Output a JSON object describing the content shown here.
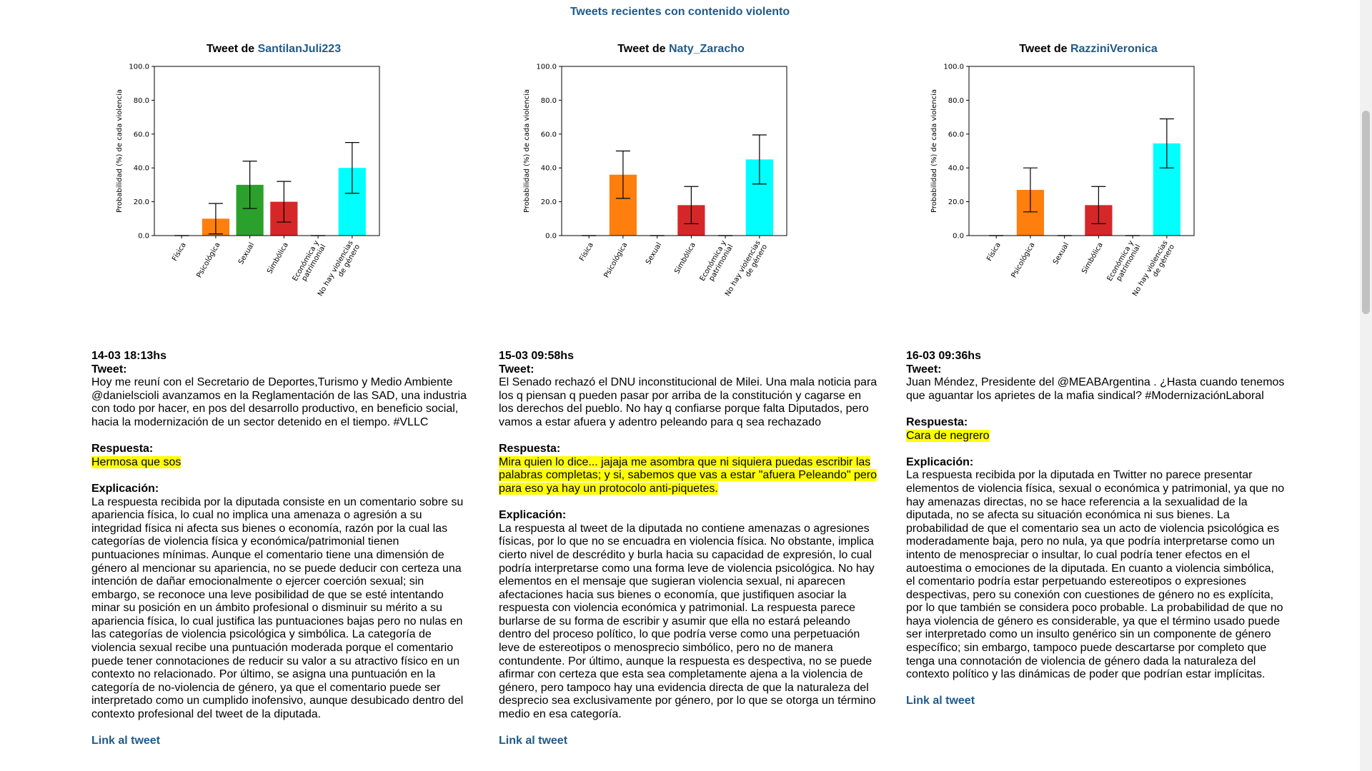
{
  "page": {
    "title": "Tweets recientes con contenido violento"
  },
  "tweets": [
    {
      "title_prefix": "Tweet de ",
      "user": "SantilanJuli223",
      "date": "14-03 18:13hs",
      "tweet_label": "Tweet:",
      "tweet_text": "Hoy me reuní con el Secretario de Deportes,Turismo y Medio Ambiente @danielscioli avanzamos en la Reglamentación de las SAD, una industria con todo por hacer, en pos del desarrollo productivo, en beneficio social, hacia la modernización de un sector detenido en el tiempo. #VLLC",
      "response_label": "Respuesta:",
      "response_text": "Hermosa que sos",
      "explanation_label": "Explicación:",
      "explanation_text": "La respuesta recibida por la diputada consiste en un comentario sobre su apariencia física, lo cual no implica una amenaza o agresión a su integridad física ni afecta sus bienes o economía, razón por la cual las categorías de violencia física y económica/patrimonial tienen puntuaciones mínimas. Aunque el comentario tiene una dimensión de género al mencionar su apariencia, no se puede deducir con certeza una intención de dañar emocionalmente o ejercer coerción sexual; sin embargo, se reconoce una leve posibilidad de que se esté intentando minar su posición en un ámbito profesional o disminuir su mérito a su apariencia física, lo cual justifica las puntuaciones bajas pero no nulas en las categorías de violencia psicológica y simbólica. La categoría de violencia sexual recibe una puntuación moderada porque el comentario puede tener connotaciones de reducir su valor a su atractivo físico en un contexto no relacionado. Por último, se asigna una puntuación en la categoría de no-violencia de género, ya que el comentario puede ser interpretado como un cumplido inofensivo, aunque desubicado dentro del contexto profesional del tweet de la diputada.",
      "link_label": "Link al tweet"
    },
    {
      "title_prefix": "Tweet de ",
      "user": "Naty_Zaracho",
      "date": "15-03 09:58hs",
      "tweet_label": "Tweet:",
      "tweet_text": "El Senado rechazó el DNU inconstitucional de Milei. Una mala noticia para los q piensan q pueden pasar por arriba de la constitución y cagarse en los derechos del pueblo. No hay q confiarse porque falta Diputados, pero vamos a estar afuera y adentro peleando para q sea rechazado",
      "response_label": "Respuesta:",
      "response_text": "Mira quien lo dice... jajaja me asombra que ni siquiera puedas escribir las palabras completas; y si, sabemos que vas a estar \"afuera Peleando\" pero para eso ya hay un protocolo anti-piquetes.",
      "explanation_label": "Explicación:",
      "explanation_text": "La respuesta al tweet de la diputada no contiene amenazas o agresiones físicas, por lo que no se encuadra en violencia física. No obstante, implica cierto nivel de descrédito y burla hacia su capacidad de expresión, lo cual podría interpretarse como una forma leve de violencia psicológica. No hay elementos en el mensaje que sugieran violencia sexual, ni aparecen afectaciones hacia sus bienes o economía, que justifiquen asociar la respuesta con violencia económica y patrimonial. La respuesta parece burlarse de su forma de escribir y asumir que ella no estará peleando dentro del proceso político, lo que podría verse como una perpetuación leve de estereotipos o menosprecio simbólico, pero no de manera contundente. Por último, aunque la respuesta es despectiva, no se puede afirmar con certeza que esta sea completamente ajena a la violencia de género, pero tampoco hay una evidencia directa de que la naturaleza del desprecio sea exclusivamente por género, por lo que se otorga un término medio en esa categoría.",
      "link_label": "Link al tweet"
    },
    {
      "title_prefix": "Tweet de ",
      "user": "RazziniVeronica",
      "date": "16-03 09:36hs",
      "tweet_label": "Tweet:",
      "tweet_text": "Juan Méndez, Presidente del @MEABArgentina . ¿Hasta cuando tenemos que aguantar los aprietes de la mafia sindical? #ModernizaciónLaboral",
      "response_label": "Respuesta:",
      "response_text": "Cara de negrero",
      "explanation_label": "Explicación:",
      "explanation_text": "La respuesta recibida por la diputada en Twitter no parece presentar elementos de violencia física, sexual o económica y patrimonial, ya que no hay amenazas directas, no se hace referencia a la sexualidad de la diputada, no se afecta su situación económica ni sus bienes. La probabilidad de que el comentario sea un acto de violencia psicológica es moderadamente baja, pero no nula, ya que podría interpretarse como un intento de menospreciar o insultar, lo cual podría tener efectos en el autoestima o emociones de la diputada. En cuanto a violencia simbólica, el comentario podría estar perpetuando estereotipos o expresiones despectivas, pero su conexión con cuestiones de género no es explícita, por lo que también se considera poco probable. La probabilidad de que no haya violencia de género es considerable, ya que el término usado puede ser interpretado como un insulto genérico sin un componente de género específico; sin embargo, tampoco puede descartarse por completo que tenga una connotación de violencia de género dada la naturaleza del contexto político y las dinámicas de poder que podrían estar implícitas.",
      "link_label": "Link al tweet"
    }
  ],
  "chart_data": [
    {
      "type": "bar",
      "ylabel": "Probabilidad (%) de cada violencia",
      "ylim": [
        0,
        100
      ],
      "yticks": [
        "0.0",
        "20.0",
        "40.0",
        "60.0",
        "80.0",
        "100.0"
      ],
      "categories": [
        [
          "Física"
        ],
        [
          "Psicológica"
        ],
        [
          "Sexual"
        ],
        [
          "Simbólica"
        ],
        [
          "Económica y",
          "patrimonial"
        ],
        [
          "No hay violencias",
          "de género"
        ]
      ],
      "colors": [
        "#1f77b4",
        "#ff7f0e",
        "#2ca02c",
        "#d62728",
        "#9467bd",
        "#00ffff"
      ],
      "values": [
        0,
        10,
        30,
        20,
        0,
        40
      ],
      "errors": [
        0,
        9,
        14,
        12,
        0,
        15
      ]
    },
    {
      "type": "bar",
      "ylabel": "Probabilidad (%) de cada violencia",
      "ylim": [
        0,
        100
      ],
      "yticks": [
        "0.0",
        "20.0",
        "40.0",
        "60.0",
        "80.0",
        "100.0"
      ],
      "categories": [
        [
          "Física"
        ],
        [
          "Psicológica"
        ],
        [
          "Sexual"
        ],
        [
          "Simbólica"
        ],
        [
          "Económica y",
          "patrimonial"
        ],
        [
          "No hay violencias",
          "de género"
        ]
      ],
      "colors": [
        "#1f77b4",
        "#ff7f0e",
        "#2ca02c",
        "#d62728",
        "#9467bd",
        "#00ffff"
      ],
      "values": [
        0,
        36,
        0,
        18,
        0,
        45
      ],
      "errors": [
        0,
        14,
        0,
        11,
        0,
        14.5
      ]
    },
    {
      "type": "bar",
      "ylabel": "Probabilidad (%) de cada violencia",
      "ylim": [
        0,
        100
      ],
      "yticks": [
        "0.0",
        "20.0",
        "40.0",
        "60.0",
        "80.0",
        "100.0"
      ],
      "categories": [
        [
          "Física"
        ],
        [
          "Psicológica"
        ],
        [
          "Sexual"
        ],
        [
          "Simbólica"
        ],
        [
          "Económica y",
          "patrimonial"
        ],
        [
          "No hay violencias",
          "de género"
        ]
      ],
      "colors": [
        "#1f77b4",
        "#ff7f0e",
        "#2ca02c",
        "#d62728",
        "#9467bd",
        "#00ffff"
      ],
      "values": [
        0,
        27,
        0,
        18,
        0,
        54.5
      ],
      "errors": [
        0,
        13,
        0,
        11,
        0,
        14.5
      ]
    }
  ]
}
